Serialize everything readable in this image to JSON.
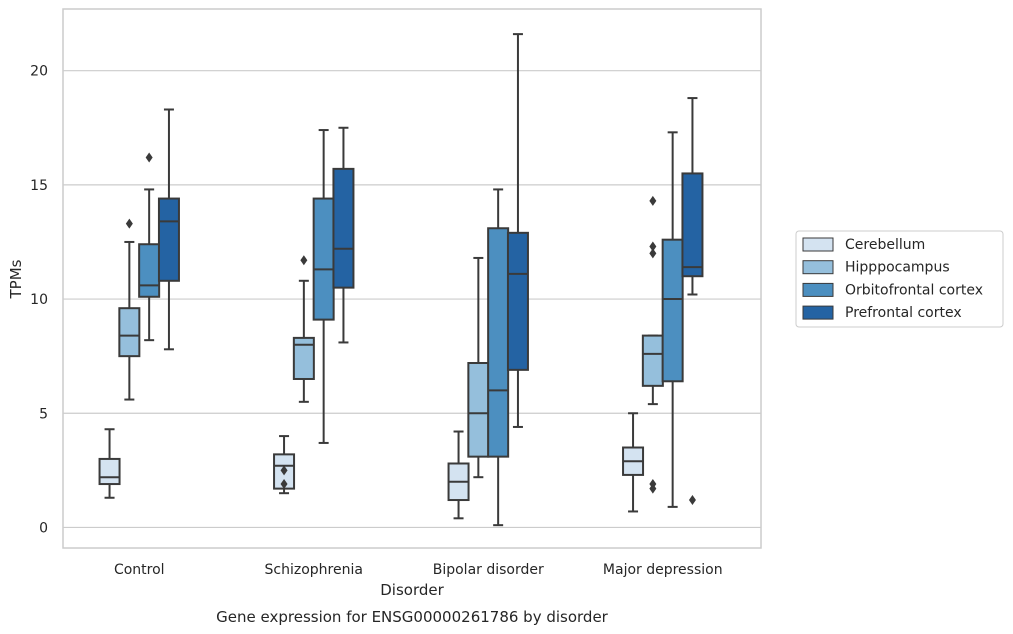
{
  "chart_data": {
    "type": "box",
    "caption": "Gene expression for ENSG00000261786 by disorder",
    "xlabel": "Disorder",
    "ylabel": "TPMs",
    "ylim": [
      -0.9,
      22.7
    ],
    "yticks": [
      0,
      5,
      10,
      15,
      20
    ],
    "grid": "horizontal",
    "legend_position": "right",
    "categories": [
      "Control",
      "Schizophrenia",
      "Bipolar disorder",
      "Major depression"
    ],
    "series": [
      {
        "name": "Cerebellum",
        "color": "#d4e3f1",
        "boxes": [
          {
            "whislo": 1.3,
            "q1": 1.9,
            "med": 2.2,
            "q3": 3.0,
            "whishi": 4.3,
            "fliers": []
          },
          {
            "whislo": 1.5,
            "q1": 1.7,
            "med": 2.7,
            "q3": 3.2,
            "whishi": 4.0,
            "fliers": [
              1.9,
              2.5
            ]
          },
          {
            "whislo": 0.4,
            "q1": 1.2,
            "med": 2.0,
            "q3": 2.8,
            "whishi": 4.2,
            "fliers": []
          },
          {
            "whislo": 0.7,
            "q1": 2.3,
            "med": 2.9,
            "q3": 3.5,
            "whishi": 5.0,
            "fliers": []
          }
        ]
      },
      {
        "name": "Hipppocampus",
        "color": "#95bfdc",
        "boxes": [
          {
            "whislo": 5.6,
            "q1": 7.5,
            "med": 8.4,
            "q3": 9.6,
            "whishi": 12.5,
            "fliers": [
              13.3
            ]
          },
          {
            "whislo": 5.5,
            "q1": 6.5,
            "med": 8.0,
            "q3": 8.3,
            "whishi": 10.8,
            "fliers": [
              11.7
            ]
          },
          {
            "whislo": 2.2,
            "q1": 3.1,
            "med": 5.0,
            "q3": 7.2,
            "whishi": 11.8,
            "fliers": []
          },
          {
            "whislo": 5.4,
            "q1": 6.2,
            "med": 7.6,
            "q3": 8.4,
            "whishi": 8.4,
            "fliers": [
              12.0,
              12.3,
              14.3,
              1.7,
              1.9
            ]
          }
        ]
      },
      {
        "name": "Orbitofrontal cortex",
        "color": "#4c8fc0",
        "boxes": [
          {
            "whislo": 8.2,
            "q1": 10.1,
            "med": 10.6,
            "q3": 12.4,
            "whishi": 14.8,
            "fliers": [
              16.2
            ]
          },
          {
            "whislo": 3.7,
            "q1": 9.1,
            "med": 11.3,
            "q3": 14.4,
            "whishi": 17.4,
            "fliers": []
          },
          {
            "whislo": 0.1,
            "q1": 3.1,
            "med": 6.0,
            "q3": 13.1,
            "whishi": 14.8,
            "fliers": []
          },
          {
            "whislo": 0.9,
            "q1": 6.4,
            "med": 10.0,
            "q3": 12.6,
            "whishi": 17.3,
            "fliers": []
          }
        ]
      },
      {
        "name": "Prefrontal cortex",
        "color": "#2463a3",
        "boxes": [
          {
            "whislo": 7.8,
            "q1": 10.8,
            "med": 13.4,
            "q3": 14.4,
            "whishi": 18.3,
            "fliers": []
          },
          {
            "whislo": 8.1,
            "q1": 10.5,
            "med": 12.2,
            "q3": 15.7,
            "whishi": 17.5,
            "fliers": []
          },
          {
            "whislo": 4.4,
            "q1": 6.9,
            "med": 11.1,
            "q3": 12.9,
            "whishi": 21.6,
            "fliers": []
          },
          {
            "whislo": 10.2,
            "q1": 11.0,
            "med": 11.4,
            "q3": 15.5,
            "whishi": 18.8,
            "fliers": [
              1.2
            ]
          }
        ]
      }
    ]
  }
}
